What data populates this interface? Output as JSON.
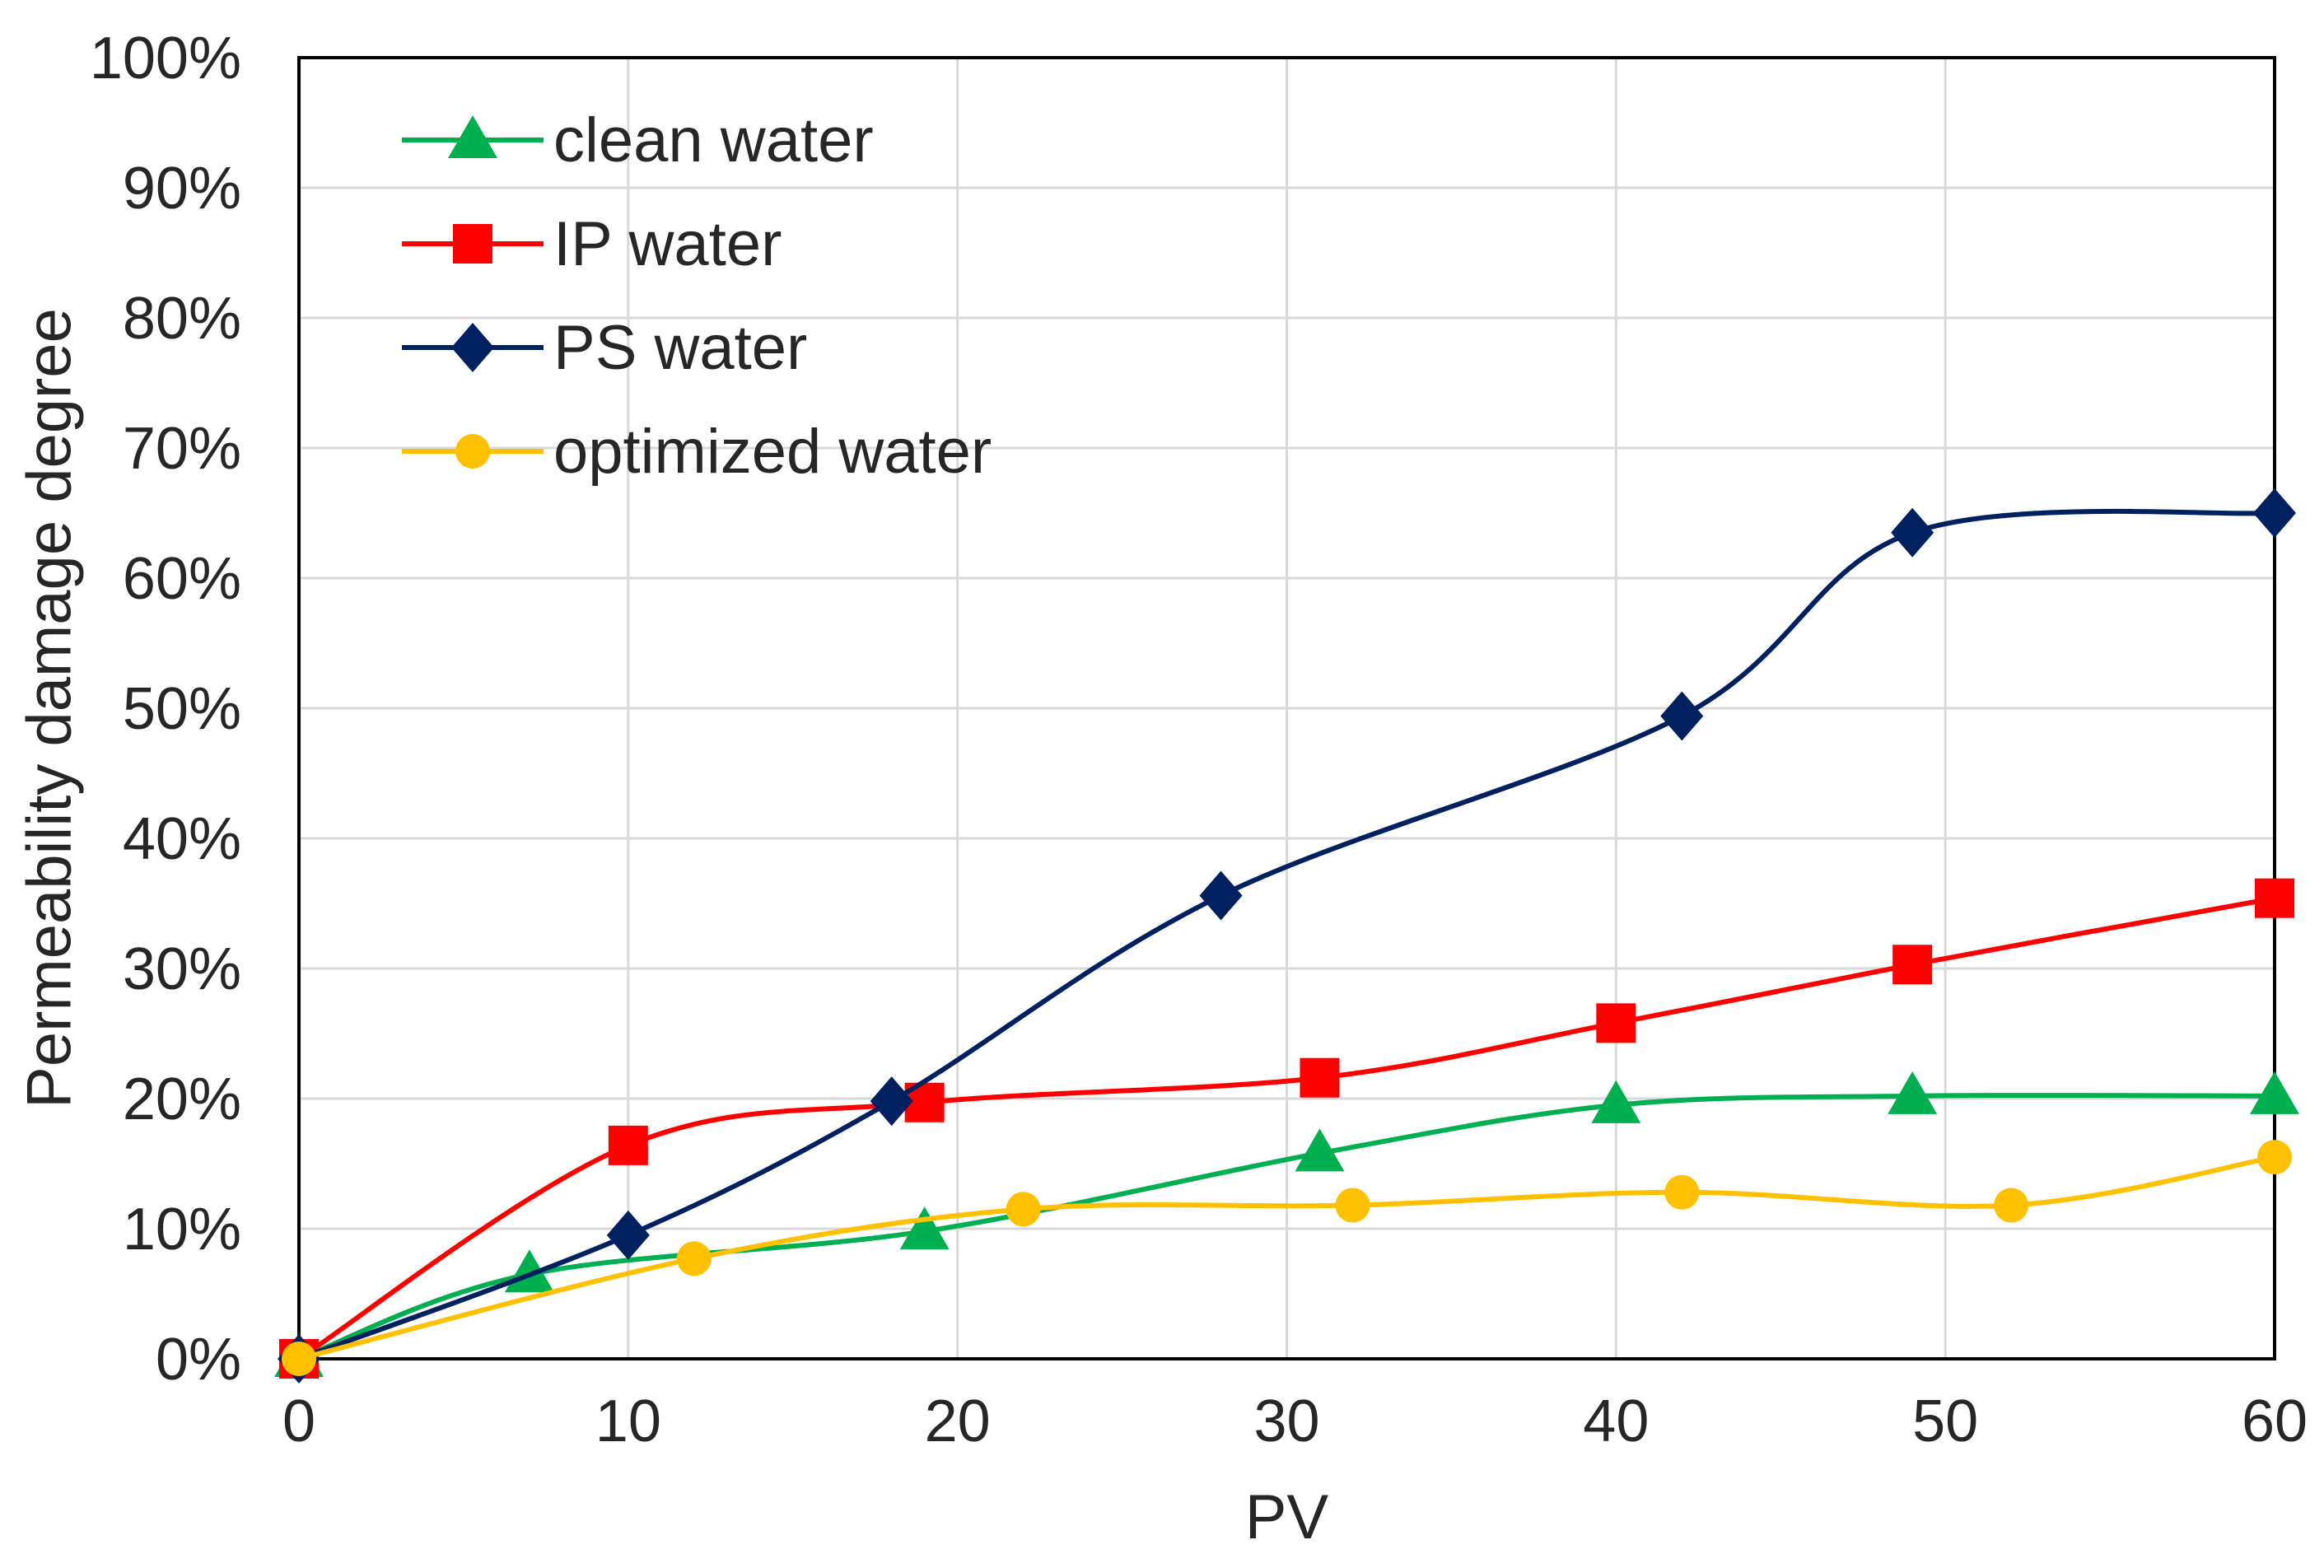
{
  "chart_data": {
    "type": "line",
    "title": "",
    "xlabel": "PV",
    "ylabel": "Permeability damage degree",
    "xlim": [
      0,
      60
    ],
    "ylim": [
      0,
      100
    ],
    "xticks": [
      0,
      10,
      20,
      30,
      40,
      50,
      60
    ],
    "xtick_labels": [
      "0",
      "10",
      "20",
      "30",
      "40",
      "50",
      "60"
    ],
    "yticks": [
      0,
      10,
      20,
      30,
      40,
      50,
      60,
      70,
      80,
      90,
      100
    ],
    "ytick_labels": [
      "0%",
      "10%",
      "20%",
      "30%",
      "40%",
      "50%",
      "60%",
      "70%",
      "80%",
      "90%",
      "100%"
    ],
    "grid": true,
    "legend_position": "top-left",
    "series": [
      {
        "name": "clean water",
        "color": "#00b050",
        "marker": "triangle",
        "x": [
          0,
          7,
          19,
          31,
          40,
          49,
          60
        ],
        "y": [
          0,
          6.5,
          9.8,
          15.8,
          19.5,
          20.2,
          20.2
        ]
      },
      {
        "name": "IP water",
        "color": "#ff0000",
        "marker": "square",
        "x": [
          0,
          10,
          19,
          31,
          40,
          49,
          60
        ],
        "y": [
          0,
          16.4,
          19.7,
          21.6,
          25.8,
          30.3,
          35.4
        ]
      },
      {
        "name": "PS water",
        "color": "#002060",
        "marker": "diamond",
        "x": [
          0,
          10,
          18,
          28,
          42,
          49,
          60
        ],
        "y": [
          0,
          9.5,
          19.8,
          35.6,
          49.4,
          63.5,
          65
        ]
      },
      {
        "name": "optimized water",
        "color": "#ffc000",
        "marker": "circle",
        "x": [
          0,
          12,
          22,
          32,
          42,
          52,
          60
        ],
        "y": [
          0,
          7.7,
          11.5,
          11.8,
          12.8,
          11.8,
          15.5
        ]
      }
    ]
  }
}
